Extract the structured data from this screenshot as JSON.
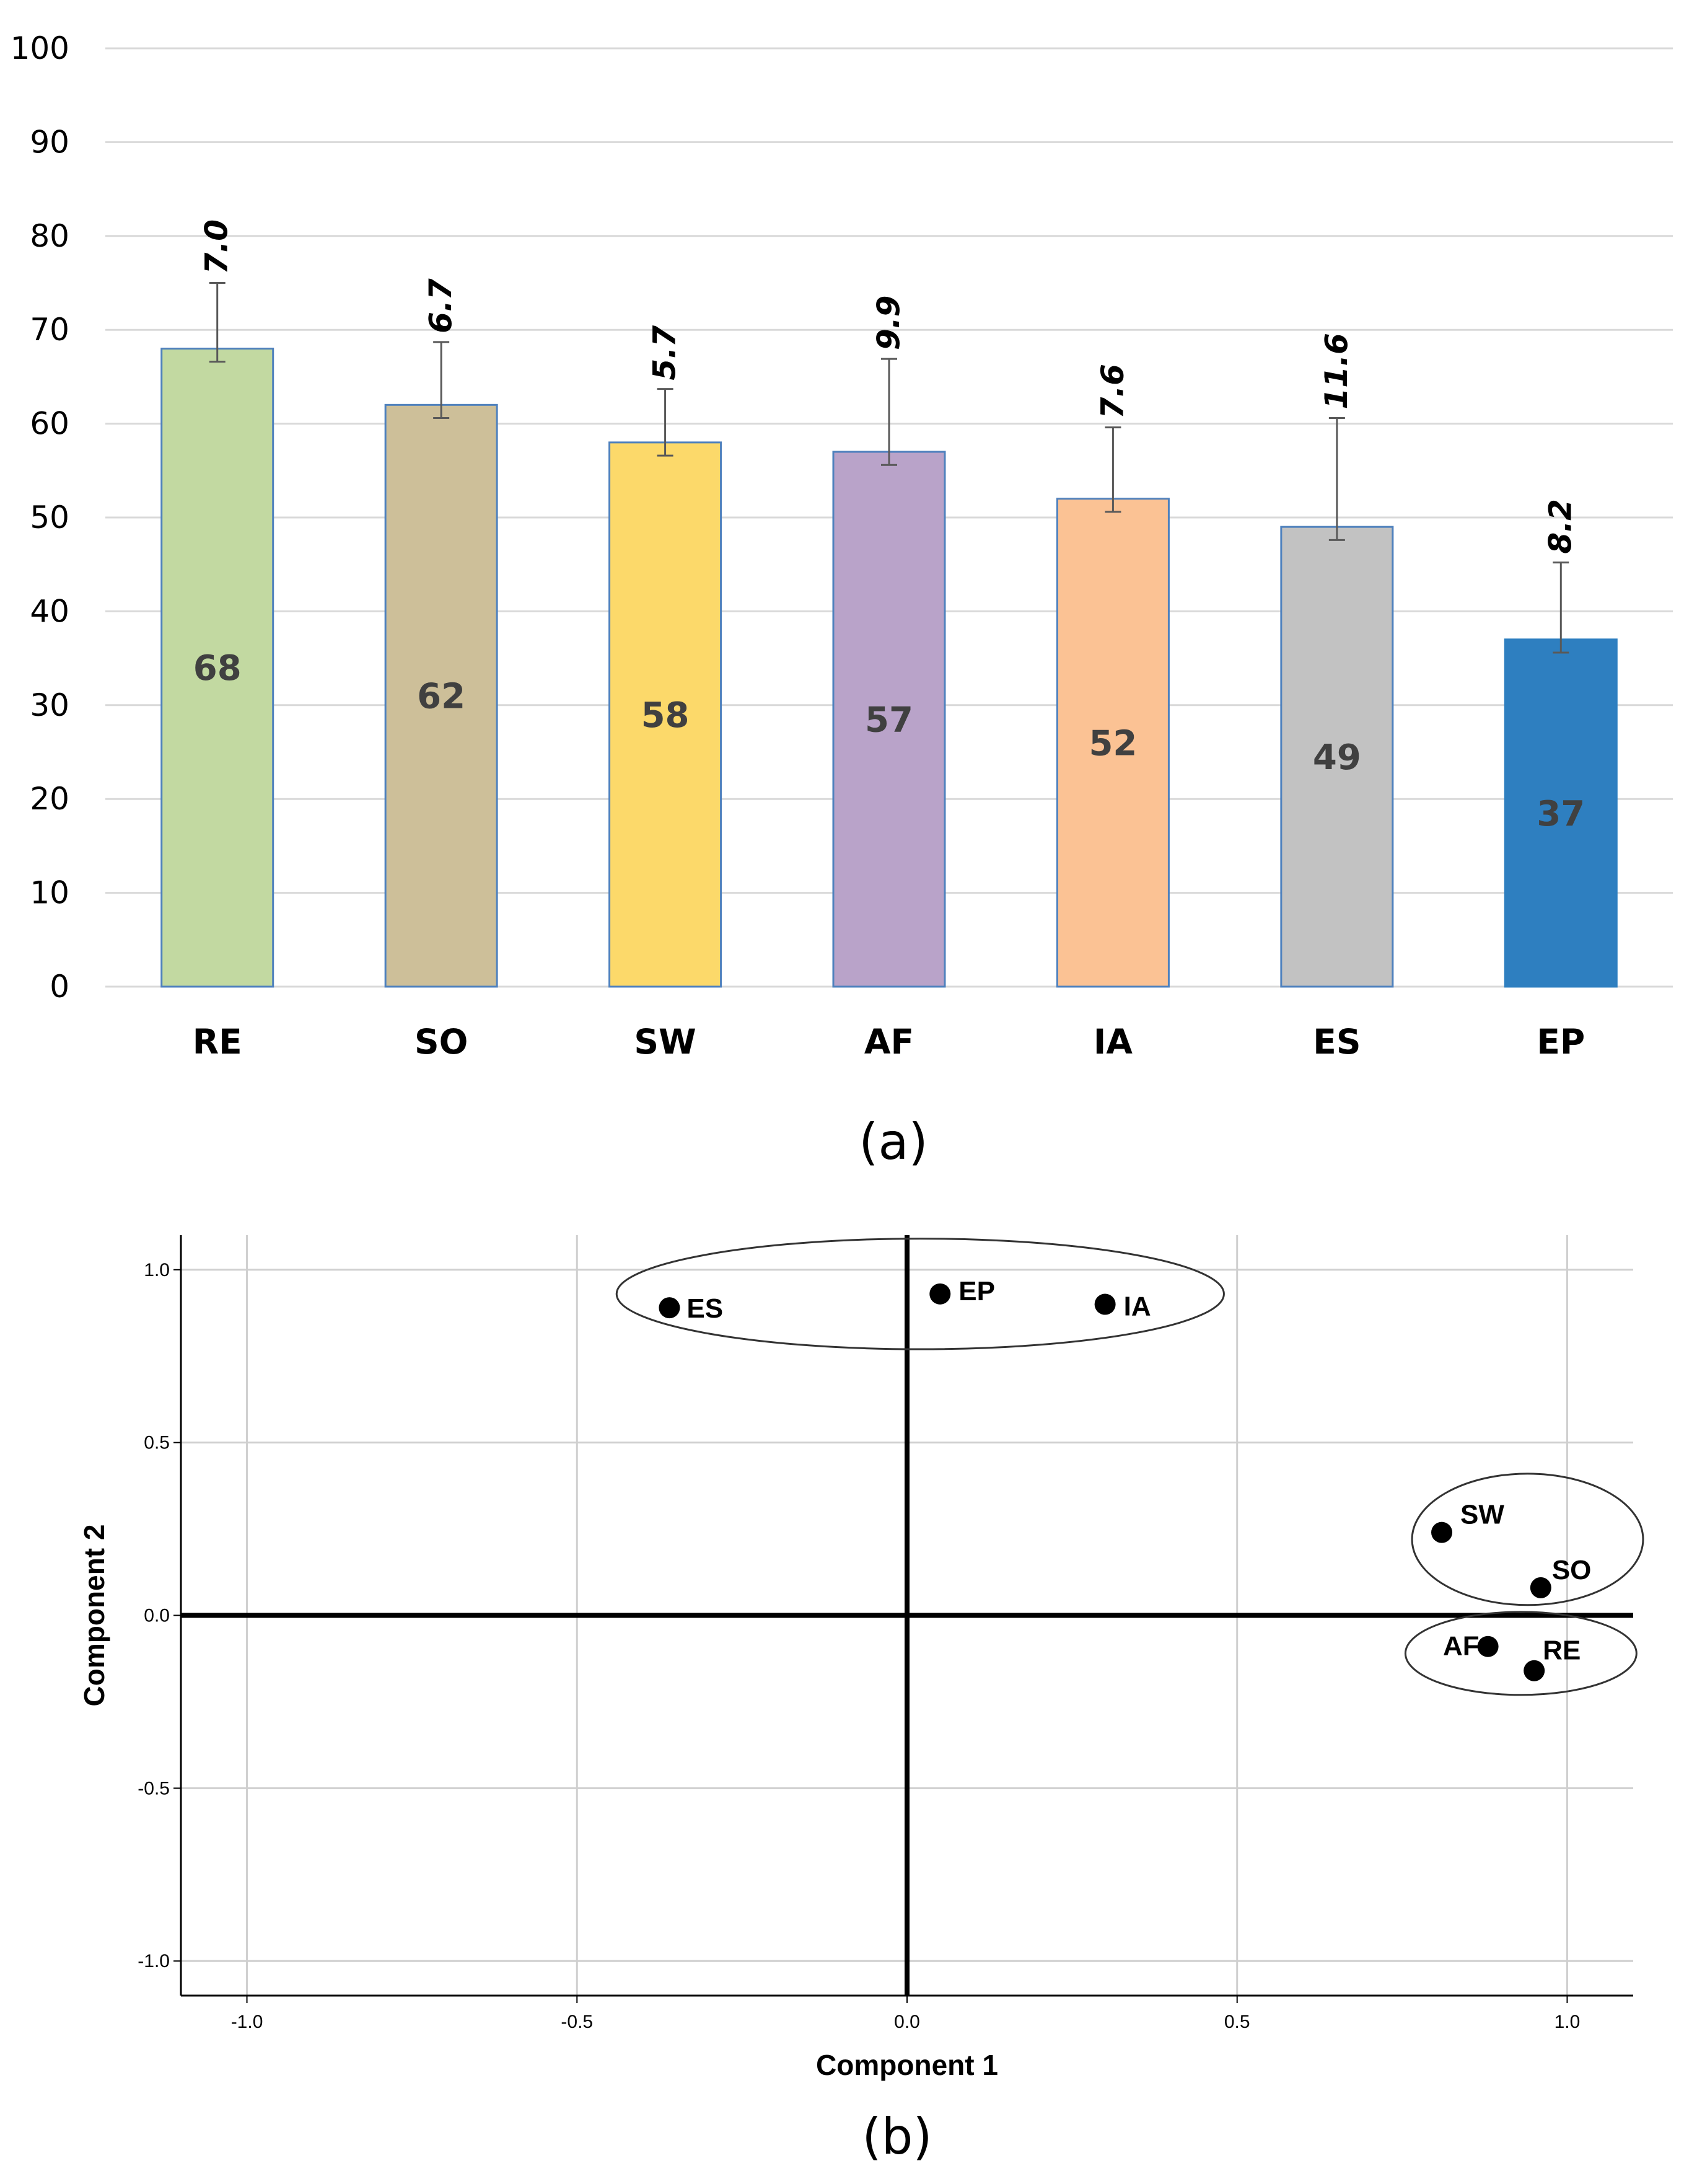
{
  "chart_data": [
    {
      "type": "bar",
      "caption": "(a)",
      "categories": [
        "RE",
        "SO",
        "SW",
        "AF",
        "IA",
        "ES",
        "EP"
      ],
      "values": [
        68,
        62,
        58,
        57,
        52,
        49,
        37
      ],
      "value_labels": [
        "68",
        "62",
        "58",
        "57",
        "52",
        "49",
        "37"
      ],
      "error_values": [
        7.0,
        6.7,
        5.7,
        9.9,
        7.6,
        11.6,
        8.2
      ],
      "error_labels": [
        "7.0",
        "6.7",
        "5.7",
        "9.9",
        "7.6",
        "11.6",
        "8.2"
      ],
      "colors": [
        "#c2d9a1",
        "#cdbf99",
        "#fcd96a",
        "#b9a3c9",
        "#fbc294",
        "#c2c2c2",
        "#2e7fc0"
      ],
      "ylim": [
        0,
        100
      ],
      "yticks": [
        "0",
        "10",
        "20",
        "30",
        "40",
        "50",
        "60",
        "70",
        "80",
        "90",
        "100"
      ],
      "grid": true,
      "xlabel": "",
      "ylabel": ""
    },
    {
      "type": "scatter",
      "caption": "(b)",
      "xlabel": "Component 1",
      "ylabel": "Component 2",
      "xlim": [
        -1.1,
        1.1
      ],
      "ylim": [
        -1.1,
        1.1
      ],
      "xticks": [
        "-1.0",
        "-0.5",
        "0.0",
        "0.5",
        "1.0"
      ],
      "yticks": [
        "-1.0",
        "-0.5",
        "0.0",
        "0.5",
        "1.0"
      ],
      "grid": true,
      "points": [
        {
          "label": "ES",
          "x": -0.36,
          "y": 0.89
        },
        {
          "label": "EP",
          "x": 0.05,
          "y": 0.93
        },
        {
          "label": "IA",
          "x": 0.3,
          "y": 0.9
        },
        {
          "label": "SW",
          "x": 0.81,
          "y": 0.24
        },
        {
          "label": "SO",
          "x": 0.96,
          "y": 0.08
        },
        {
          "label": "AF",
          "x": 0.88,
          "y": -0.09
        },
        {
          "label": "RE",
          "x": 0.95,
          "y": -0.16
        }
      ],
      "clusters": [
        {
          "members": [
            "ES",
            "EP",
            "IA"
          ],
          "cx": 0.02,
          "cy": 0.93,
          "rx": 0.46,
          "ry": 0.16
        },
        {
          "members": [
            "SW",
            "SO"
          ],
          "cx": 0.94,
          "cy": 0.22,
          "rx": 0.175,
          "ry": 0.19
        },
        {
          "members": [
            "AF",
            "RE"
          ],
          "cx": 0.93,
          "cy": -0.11,
          "rx": 0.175,
          "ry": 0.12
        }
      ]
    }
  ]
}
